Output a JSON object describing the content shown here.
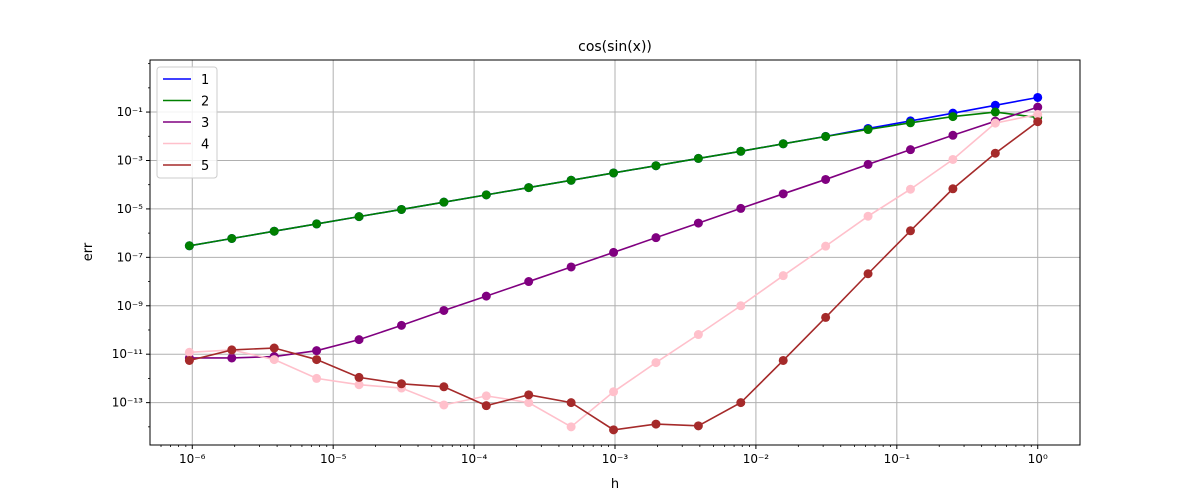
{
  "chart_data": {
    "type": "line",
    "title": "cos(sin(x))",
    "xlabel": "h",
    "ylabel": "err",
    "xscale": "log",
    "yscale": "log",
    "xlim_exp": [
      -6.3,
      0.3
    ],
    "ylim_exp": [
      -14.75,
      1.15
    ],
    "x_tick_exponents": [
      -6,
      -5,
      -4,
      -3,
      -2,
      -1,
      0
    ],
    "y_tick_exponents": [
      -13,
      -11,
      -9,
      -7,
      -5,
      -3,
      -1
    ],
    "grid": true,
    "legend_position": "top-left",
    "x": [
      1,
      0.5,
      0.25,
      0.125,
      0.0625,
      0.03125,
      0.015625,
      0.0078125,
      0.00390625,
      0.001953125,
      0.0009765625,
      0.00048828125,
      0.000244140625,
      0.0001220703125,
      6.103515625e-05,
      3.0517578125e-05,
      1.52587890625e-05,
      7.62939453125e-06,
      3.814697265625e-06,
      1.9073486328125e-06,
      9.5367431640625e-07
    ],
    "series": [
      {
        "name": "1",
        "color": "#0000ff",
        "values": [
          0.4,
          0.19,
          0.09,
          0.043,
          0.021,
          0.0099,
          0.0049,
          0.0024,
          0.00122,
          0.00061,
          0.000305,
          0.000152,
          7.6e-05,
          3.8e-05,
          1.9e-05,
          9.5e-06,
          4.8e-06,
          2.4e-06,
          1.2e-06,
          6e-07,
          3e-07
        ]
      },
      {
        "name": "2",
        "color": "#008000",
        "values": [
          0.06,
          0.1,
          0.065,
          0.036,
          0.019,
          0.0098,
          0.0049,
          0.0024,
          0.00122,
          0.00061,
          0.000305,
          0.000152,
          7.6e-05,
          3.8e-05,
          1.9e-05,
          9.5e-06,
          4.8e-06,
          2.4e-06,
          1.2e-06,
          6e-07,
          3e-07
        ]
      },
      {
        "name": "3",
        "color": "#800080",
        "values": [
          0.16,
          0.042,
          0.011,
          0.0028,
          0.00069,
          0.000165,
          4.2e-05,
          1.05e-05,
          2.6e-06,
          6.5e-07,
          1.6e-07,
          4e-08,
          1e-08,
          2.5e-09,
          6.4e-10,
          1.55e-10,
          4e-11,
          1.4e-11,
          8e-12,
          7e-12,
          7e-12
        ]
      },
      {
        "name": "4",
        "color": "#ffc0cb",
        "values": [
          0.08,
          0.035,
          0.0011,
          6.5e-05,
          5e-06,
          2.9e-07,
          1.75e-08,
          1e-09,
          6.5e-11,
          4.5e-12,
          2.8e-13,
          1e-14,
          1e-13,
          1.9e-13,
          8e-14,
          4e-13,
          5.5e-13,
          1e-12,
          6e-12,
          1.5e-11,
          1.2e-11
        ]
      },
      {
        "name": "5",
        "color": "#a52a2a",
        "values": [
          0.04,
          0.002,
          6.8e-05,
          1.25e-06,
          2.1e-08,
          3.3e-10,
          5.5e-12,
          1e-13,
          1.1e-14,
          1.3e-14,
          7.5e-15,
          1e-13,
          2.1e-13,
          7.5e-14,
          4.5e-13,
          6e-13,
          1.1e-12,
          6e-12,
          1.8e-11,
          1.5e-11,
          5.5e-12
        ]
      }
    ]
  }
}
